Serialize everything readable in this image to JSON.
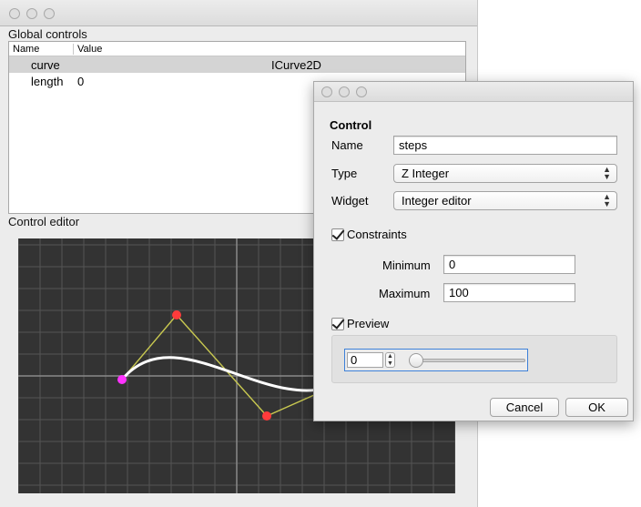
{
  "main_window": {
    "global_controls": {
      "label": "Global controls",
      "columns": [
        "Name",
        "Value"
      ],
      "rows": [
        {
          "name": "curve",
          "value": "ICurve2D",
          "selected": true
        },
        {
          "name": "length",
          "value": "0",
          "selected": false
        }
      ]
    },
    "control_editor": {
      "label": "Control editor",
      "colors": {
        "background": "#333333",
        "grid": "#555555",
        "axis": "#8a8a8a",
        "curve": "#ffffff",
        "control_polygon": "#c8c850",
        "control_point": "#ff3b3b",
        "start_point": "#ff33ff"
      }
    }
  },
  "dialog": {
    "heading": "Control",
    "name_label": "Name",
    "name_value": "steps",
    "type_label": "Type",
    "type_value": "Z Integer",
    "widget_label": "Widget",
    "widget_value": "Integer editor",
    "constraints_label": "Constraints",
    "minimum_label": "Minimum",
    "minimum_value": "0",
    "maximum_label": "Maximum",
    "maximum_value": "100",
    "preview_label": "Preview",
    "preview_spin_value": "0",
    "preview_slider_fraction": 0,
    "cancel_label": "Cancel",
    "ok_label": "OK"
  }
}
